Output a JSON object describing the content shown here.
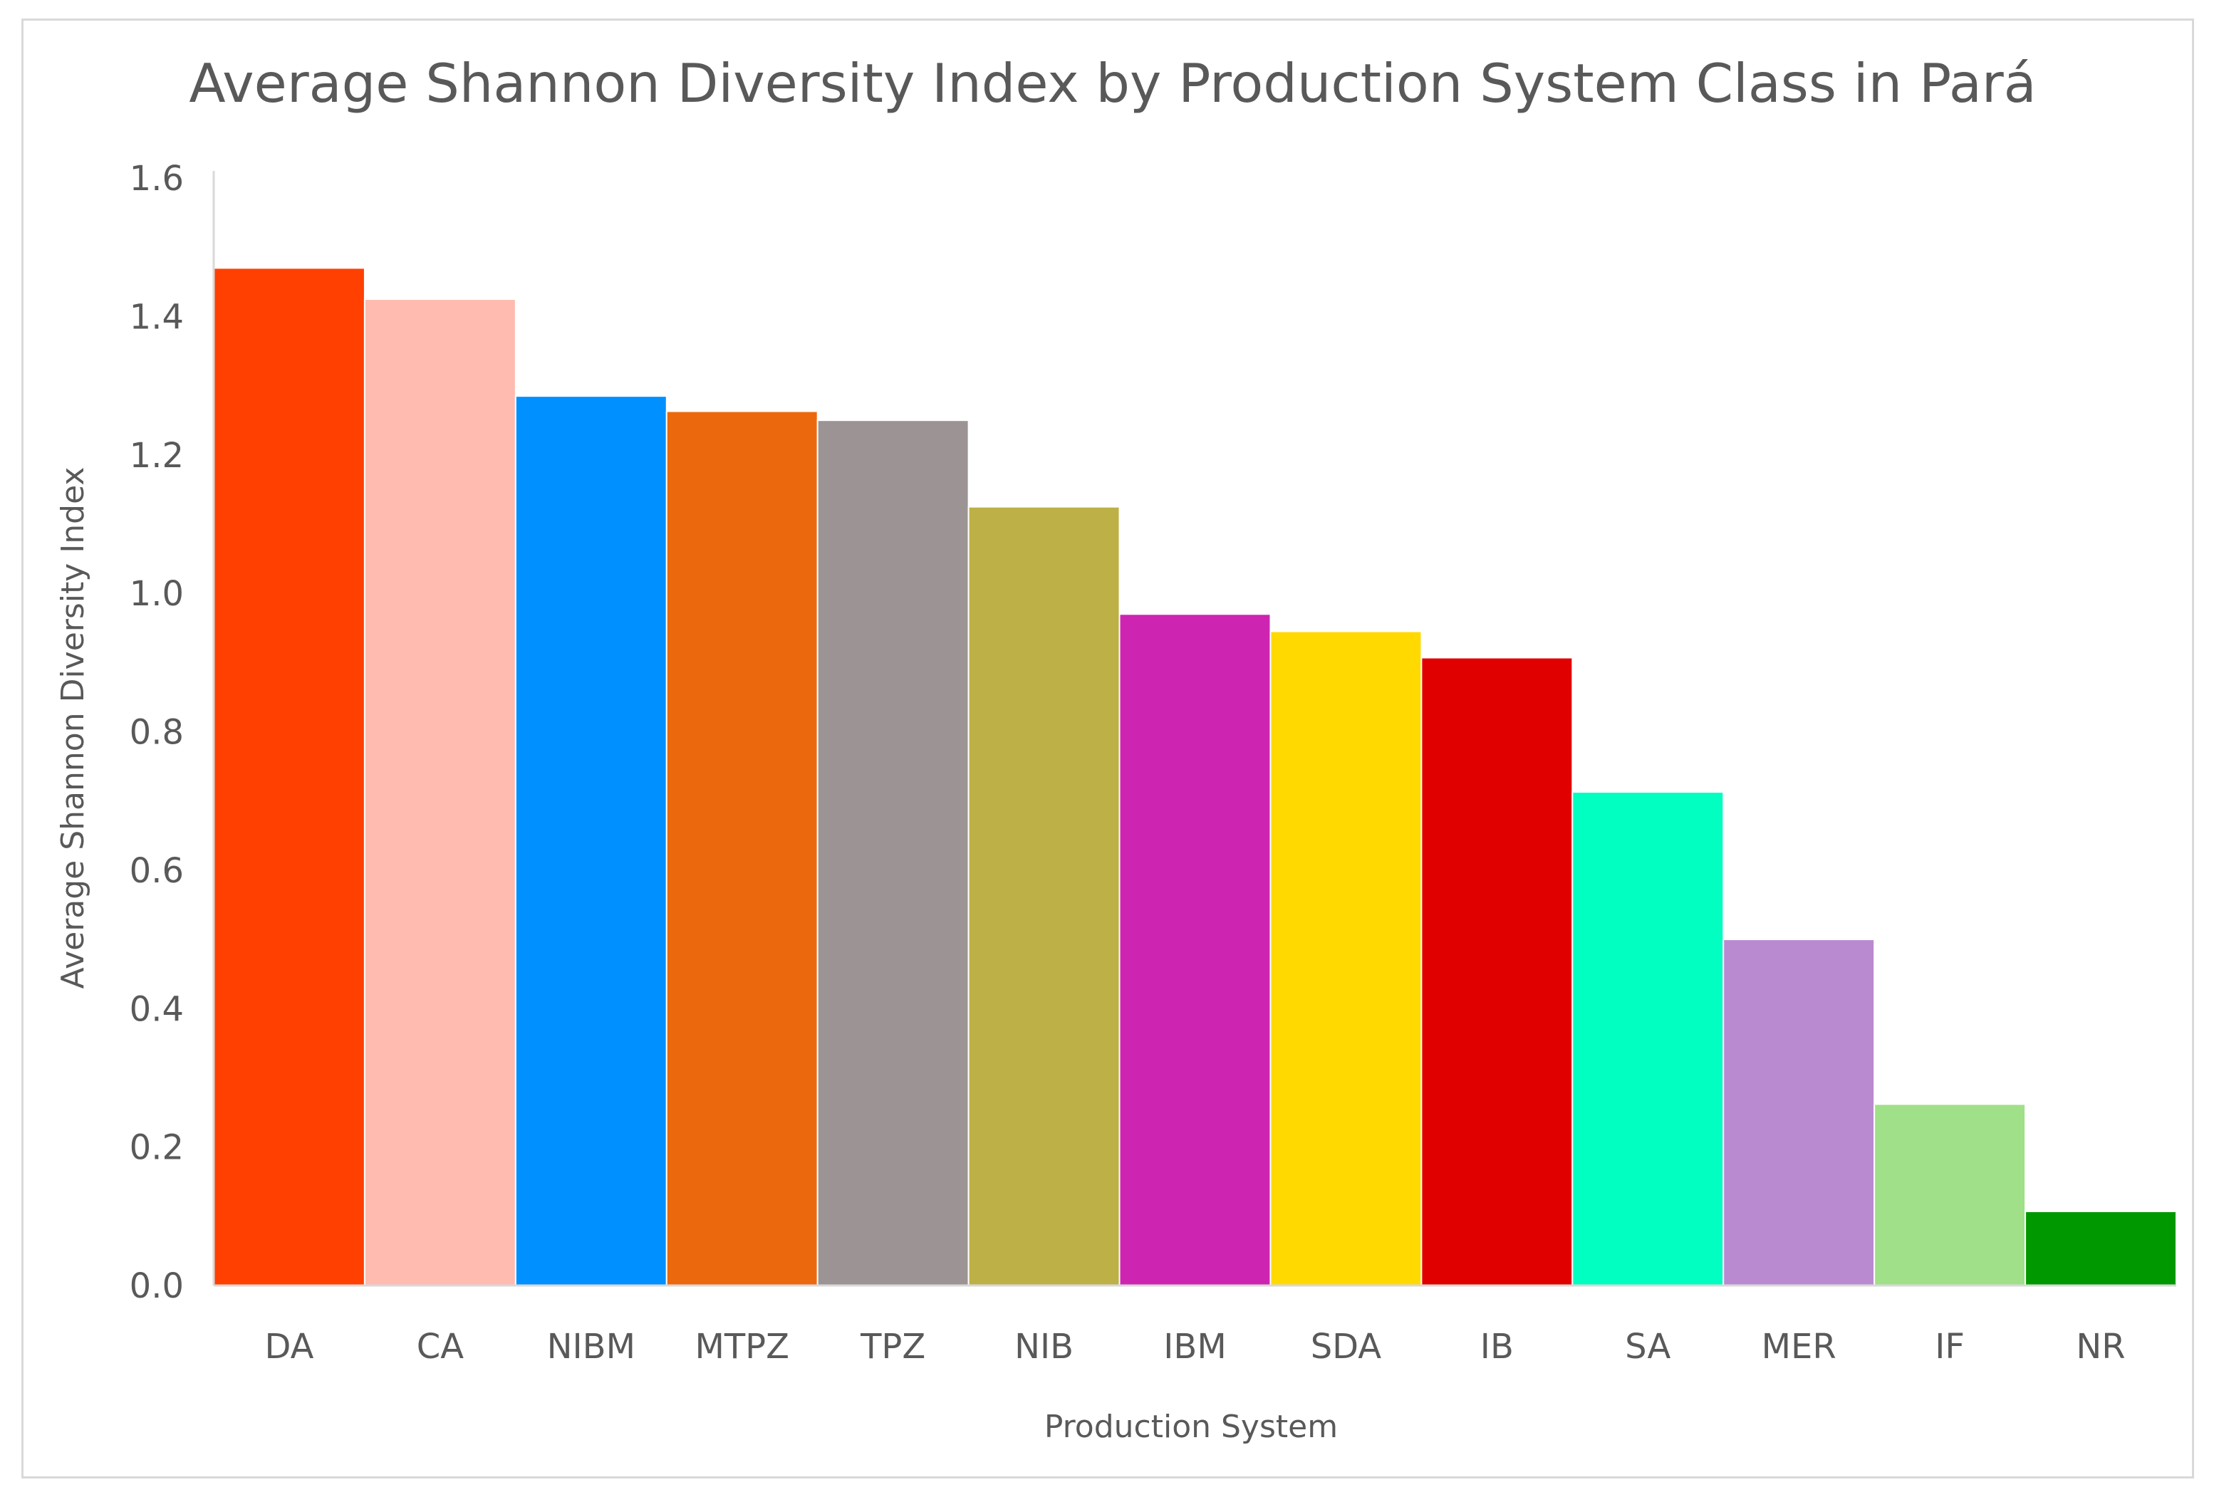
{
  "chart_data": {
    "type": "bar",
    "title": "Average Shannon Diversity Index by Production System Class in Pará",
    "xlabel": "Production System",
    "ylabel": "Average Shannon Diversity Index",
    "ylim": [
      0,
      1.6
    ],
    "yticks": [
      "0.0",
      "0.2",
      "0.4",
      "0.6",
      "0.8",
      "1.0",
      "1.2",
      "1.4",
      "1.6"
    ],
    "categories": [
      "DA",
      "CA",
      "NIBM",
      "MTPZ",
      "TPZ",
      "NIB",
      "IBM",
      "SDA",
      "IB",
      "SA",
      "MER",
      "IF",
      "NR"
    ],
    "values": [
      1.47,
      1.425,
      1.285,
      1.263,
      1.25,
      1.125,
      0.97,
      0.945,
      0.907,
      0.713,
      0.5,
      0.262,
      0.107
    ],
    "colors": [
      "#ff4000",
      "#ffbbb0",
      "#0090ff",
      "#ec680c",
      "#9c9494",
      "#bdb046",
      "#cd25b2",
      "#ffd900",
      "#e00000",
      "#00ffc0",
      "#ba8ad0",
      "#a0e088",
      "#009800"
    ],
    "grid": false,
    "legend": "none"
  }
}
